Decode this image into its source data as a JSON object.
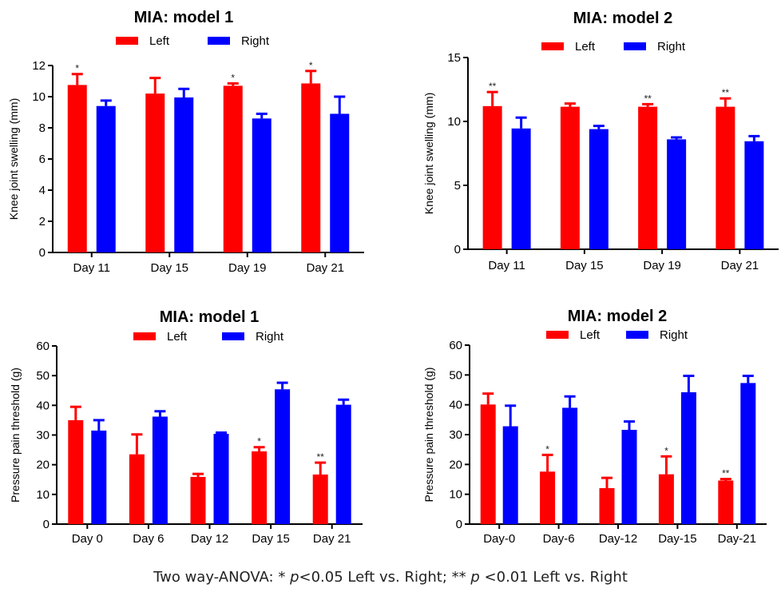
{
  "colors": {
    "left": "#ff0000",
    "right": "#0000ff",
    "axis": "#000000"
  },
  "chart_data": [
    {
      "type": "bar",
      "title": "MIA: model 1",
      "xlabel": "",
      "ylabel": "Knee joint swelling (mm)",
      "ylim": [
        0,
        12
      ],
      "yticks": [
        0,
        2,
        4,
        6,
        8,
        10,
        12
      ],
      "categories": [
        "Day 11",
        "Day 15",
        "Day 19",
        "Day 21"
      ],
      "legend": {
        "position": "top-center",
        "entries": [
          "Left",
          "Right"
        ]
      },
      "series": [
        {
          "name": "Left",
          "values": [
            10.75,
            10.2,
            10.7,
            10.85
          ],
          "error_upper": [
            11.45,
            11.2,
            10.85,
            11.65
          ],
          "significance": [
            "*",
            "",
            "*",
            "*"
          ]
        },
        {
          "name": "Right",
          "values": [
            9.4,
            9.95,
            8.6,
            8.9
          ],
          "error_upper": [
            9.75,
            10.5,
            8.9,
            10.0
          ],
          "significance": [
            "",
            "",
            "",
            ""
          ]
        }
      ]
    },
    {
      "type": "bar",
      "title": "MIA: model 2",
      "xlabel": "",
      "ylabel": "Knee joint swelling (mm)",
      "ylim": [
        0,
        15
      ],
      "yticks": [
        0,
        5,
        10,
        15
      ],
      "categories": [
        "Day 11",
        "Day 15",
        "Day 19",
        "Day 21"
      ],
      "legend": {
        "position": "top-center",
        "entries": [
          "Left",
          "Right"
        ]
      },
      "series": [
        {
          "name": "Left",
          "values": [
            11.2,
            11.15,
            11.15,
            11.15
          ],
          "error_upper": [
            12.3,
            11.4,
            11.35,
            11.8
          ],
          "significance": [
            "**",
            "",
            "**",
            "**"
          ]
        },
        {
          "name": "Right",
          "values": [
            9.45,
            9.4,
            8.6,
            8.45
          ],
          "error_upper": [
            10.3,
            9.65,
            8.75,
            8.85
          ],
          "significance": [
            "",
            "",
            "",
            ""
          ]
        }
      ]
    },
    {
      "type": "bar",
      "title": "MIA: model 1",
      "xlabel": "",
      "ylabel": "Pressure pain threshold (g)",
      "ylim": [
        0,
        60
      ],
      "yticks": [
        0,
        10,
        20,
        30,
        40,
        50,
        60
      ],
      "categories": [
        "Day 0",
        "Day 6",
        "Day 12",
        "Day 15",
        "Day 21"
      ],
      "legend": {
        "position": "top-center",
        "entries": [
          "Left",
          "Right"
        ]
      },
      "series": [
        {
          "name": "Left",
          "values": [
            35.0,
            23.5,
            15.9,
            24.5,
            16.7
          ],
          "error_upper": [
            39.5,
            30.2,
            16.9,
            25.9,
            20.7
          ],
          "significance": [
            "",
            "",
            "",
            "*",
            "**"
          ]
        },
        {
          "name": "Right",
          "values": [
            31.5,
            36.2,
            30.4,
            45.4,
            40.2
          ],
          "error_upper": [
            35.0,
            38.0,
            30.8,
            47.6,
            41.9
          ],
          "significance": [
            "",
            "",
            "",
            "",
            ""
          ]
        }
      ]
    },
    {
      "type": "bar",
      "title": "MIA: model 2",
      "xlabel": "",
      "ylabel": "Pressure pain threshold (g)",
      "ylim": [
        0,
        60
      ],
      "yticks": [
        0,
        10,
        20,
        30,
        40,
        50,
        60
      ],
      "categories": [
        "Day-0",
        "Day-6",
        "Day-12",
        "Day-15",
        "Day-21"
      ],
      "legend": {
        "position": "top-center",
        "entries": [
          "Left",
          "Right"
        ]
      },
      "series": [
        {
          "name": "Left",
          "values": [
            40.1,
            17.6,
            12.05,
            16.7,
            14.6
          ],
          "error_upper": [
            43.75,
            23.2,
            15.5,
            22.7,
            15.1
          ],
          "significance": [
            "",
            "*",
            "",
            "*",
            "**"
          ]
        },
        {
          "name": "Right",
          "values": [
            32.8,
            39.0,
            31.6,
            44.2,
            47.3
          ],
          "error_upper": [
            39.7,
            42.8,
            34.4,
            49.7,
            49.7
          ],
          "significance": [
            "",
            "",
            "",
            "",
            ""
          ]
        }
      ]
    }
  ],
  "footnote": {
    "prefix": "Two way-ANOVA: ",
    "star1": "* ",
    "p1": "p",
    "text1": "<0.05 Left vs. Right; ",
    "star2": "** ",
    "p2": "p",
    "text2": " <0.01 Left vs. Right"
  }
}
